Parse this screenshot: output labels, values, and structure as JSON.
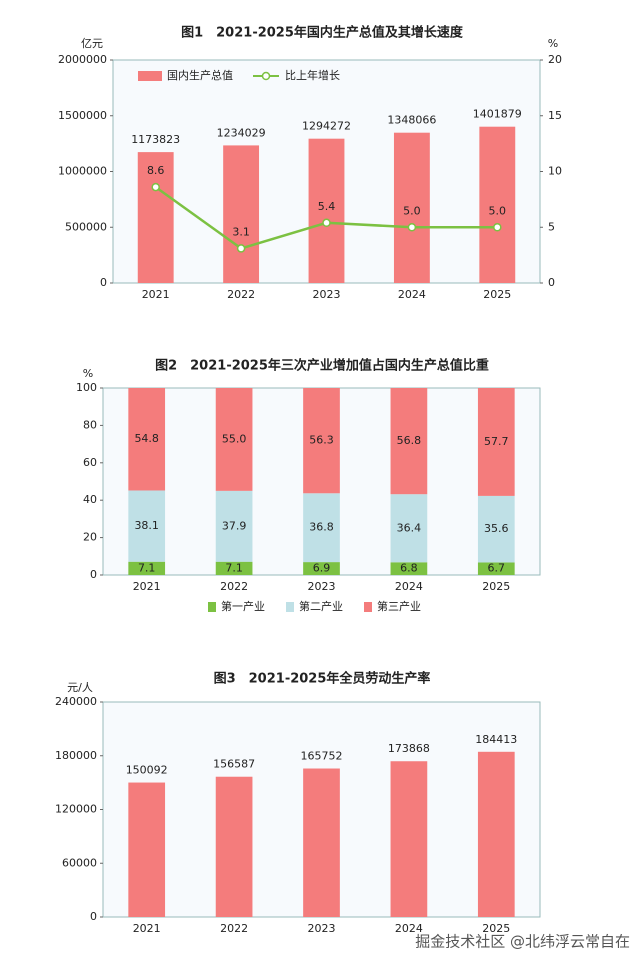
{
  "chart_data": [
    {
      "type": "bar",
      "title": "图1　2021-2025年国内生产总值及其增长速度",
      "ylabel": "亿元",
      "y2label": "%",
      "categories": [
        "2021",
        "2022",
        "2023",
        "2024",
        "2025"
      ],
      "series": [
        {
          "name": "国内生产总值",
          "type": "bar",
          "color": "#f47c7c",
          "values": [
            1173823,
            1234029,
            1294272,
            1348066,
            1401879
          ]
        },
        {
          "name": "比上年增长",
          "type": "line",
          "axis": "y2",
          "color": "#7cc142",
          "values": [
            8.6,
            3.1,
            5.4,
            5.0,
            5.0
          ],
          "value_labels": [
            "8.6",
            "3.1",
            "5.4",
            "5.0",
            "5.0"
          ]
        }
      ],
      "ylim": [
        0,
        2000000
      ],
      "yticks": [
        0,
        500000,
        1000000,
        1500000,
        2000000
      ],
      "y2lim": [
        0,
        20
      ],
      "y2ticks": [
        0,
        5,
        10,
        15,
        20
      ],
      "legend": "top-left",
      "stacked": false
    },
    {
      "type": "bar",
      "title": "图2　2021-2025年三次产业增加值占国内生产总值比重",
      "ylabel": "%",
      "categories": [
        "2021",
        "2022",
        "2023",
        "2024",
        "2025"
      ],
      "series": [
        {
          "name": "第一产业",
          "type": "bar",
          "color": "#7cc142",
          "values": [
            7.1,
            7.1,
            6.9,
            6.8,
            6.7
          ]
        },
        {
          "name": "第二产业",
          "type": "bar",
          "color": "#bfe0e6",
          "values": [
            38.1,
            37.9,
            36.8,
            36.4,
            35.6
          ]
        },
        {
          "name": "第三产业",
          "type": "bar",
          "color": "#f47c7c",
          "values": [
            54.8,
            55.0,
            56.3,
            56.8,
            57.7
          ],
          "value_labels": [
            "54.8",
            "55.0",
            "56.3",
            "56.8",
            "57.7"
          ]
        }
      ],
      "ylim": [
        0,
        100
      ],
      "yticks": [
        0,
        20,
        40,
        60,
        80,
        100
      ],
      "legend": "bottom",
      "stacked": true
    },
    {
      "type": "bar",
      "title": "图3　2021-2025年全员劳动生产率",
      "ylabel": "元/人",
      "categories": [
        "2021",
        "2022",
        "2023",
        "2024",
        "2025"
      ],
      "values": [
        150092,
        156587,
        165752,
        173868,
        184413
      ],
      "color": "#f47c7c",
      "ylim": [
        0,
        240000
      ],
      "yticks": [
        0,
        60000,
        120000,
        180000,
        240000
      ],
      "stacked": false
    }
  ],
  "watermark": "掘金技术社区 @北纬浮云常自在"
}
